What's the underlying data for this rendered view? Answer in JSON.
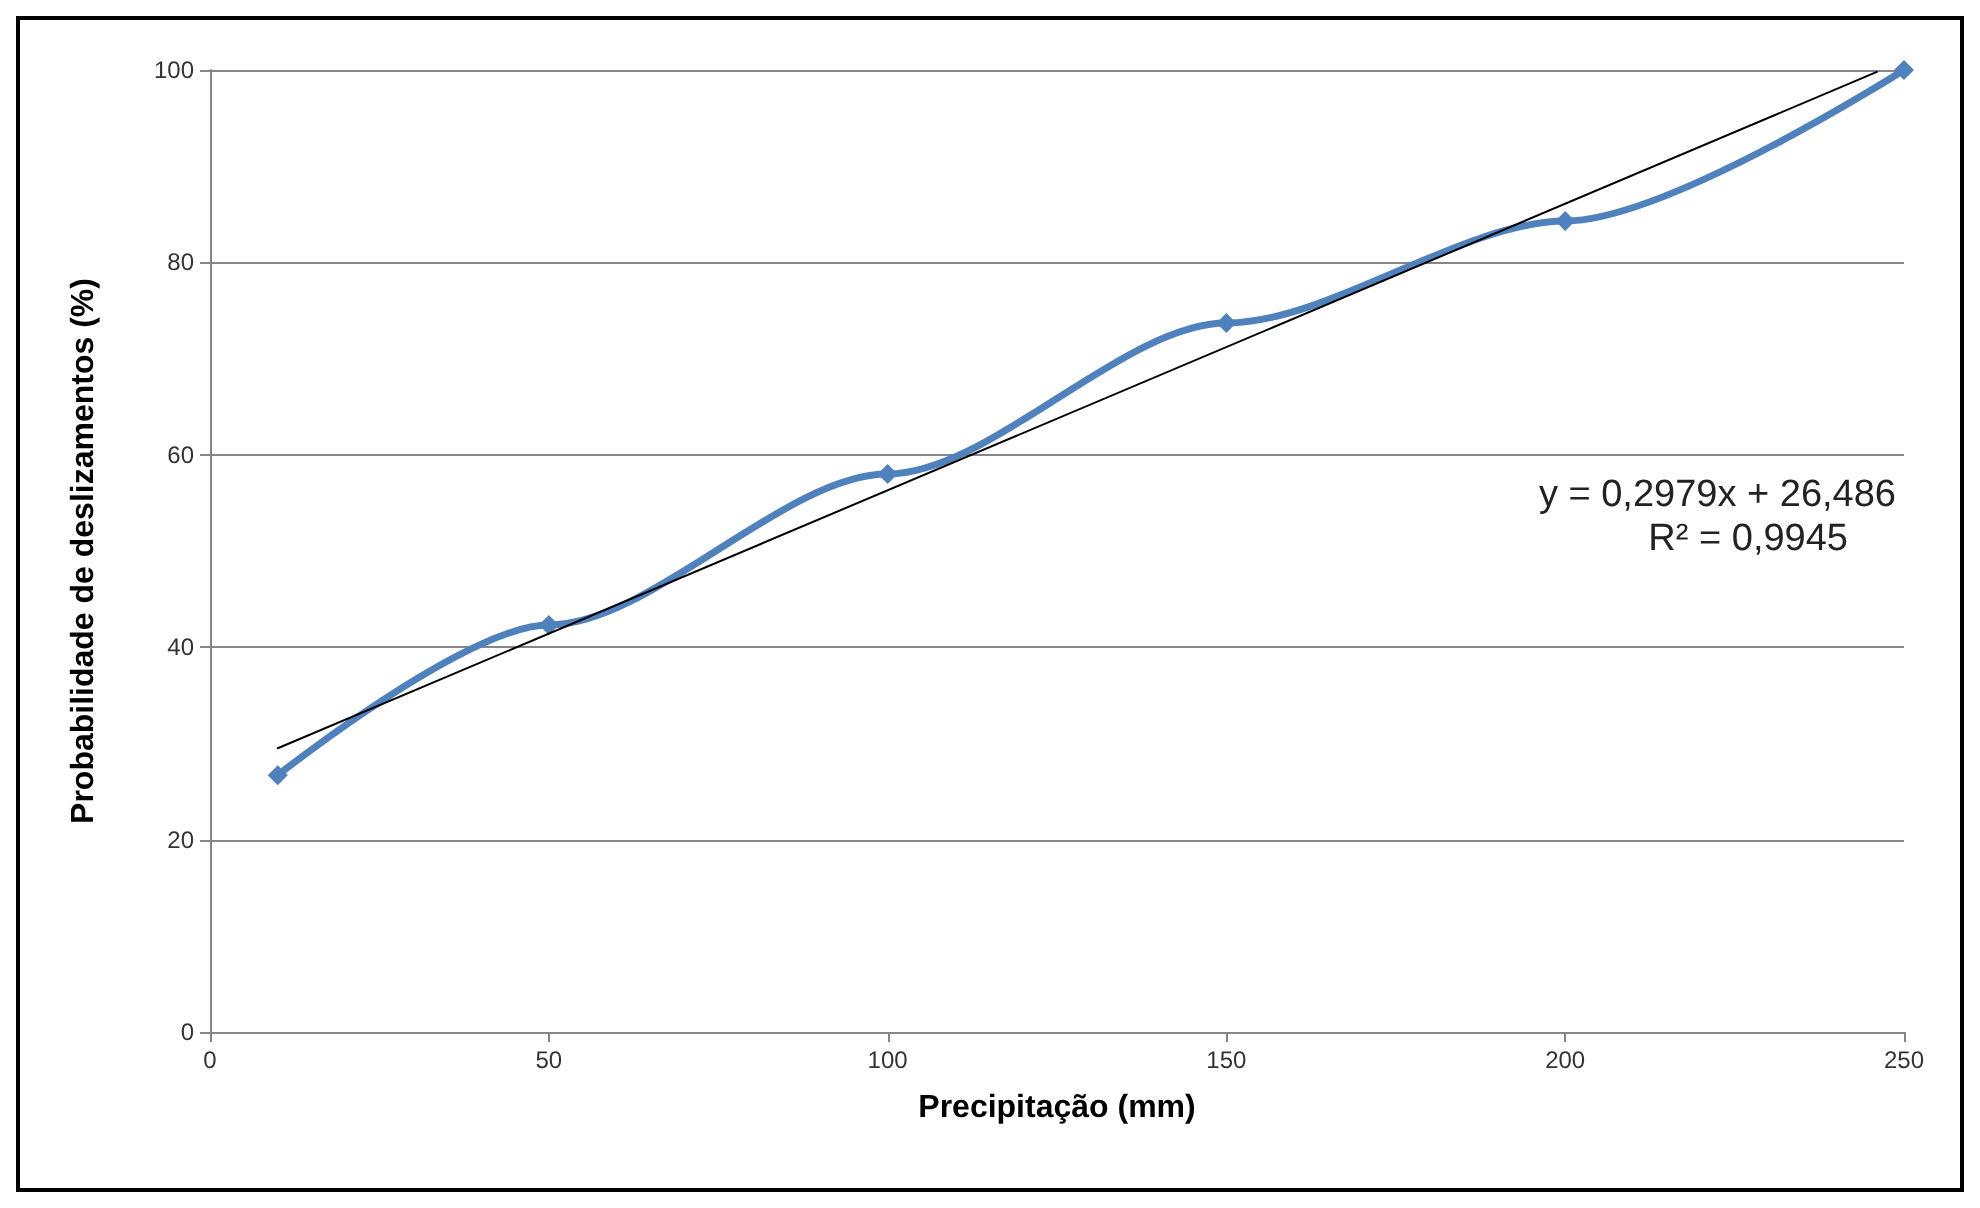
{
  "chart_data": {
    "type": "line",
    "xlabel": "Precipitação (mm)",
    "ylabel": "Probabilidade de deslizamentos (%)",
    "x": [
      10,
      50,
      100,
      150,
      200,
      250
    ],
    "series": [
      {
        "color": "#4f81bd",
        "values": [
          26.7,
          42.3,
          58,
          73.7,
          84.3,
          100
        ]
      },
      {
        "color": "#000000",
        "x": [
          10,
          246
        ],
        "values": [
          29.5,
          99.8
        ],
        "marker": "none"
      }
    ],
    "xlim": [
      0,
      250
    ],
    "xticks": [
      0,
      50,
      100,
      150,
      200,
      250
    ],
    "ylim": [
      0,
      100
    ],
    "yticks": [
      0,
      20,
      40,
      60,
      80,
      100
    ],
    "grid": "y",
    "marker": "diamond",
    "annotations": [
      "y = 0,2979x + 26,486",
      "R² = 0,9945"
    ]
  }
}
